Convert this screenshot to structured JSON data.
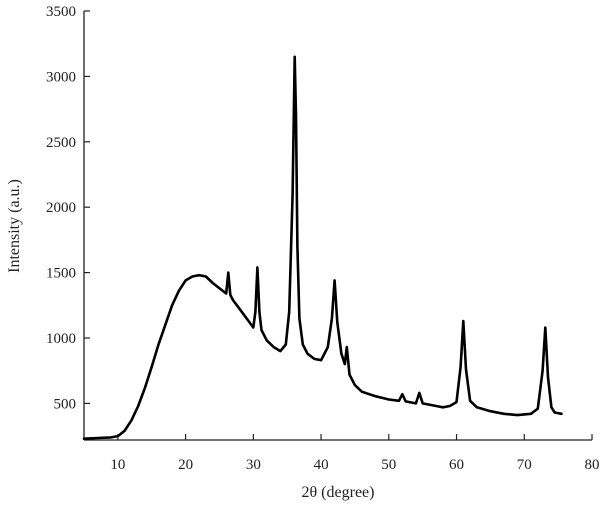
{
  "chart_data": {
    "type": "line",
    "title": "",
    "xlabel": "2θ (degree)",
    "ylabel": "Intensity (a.u.)",
    "xlim": [
      5,
      80
    ],
    "ylim": [
      220,
      3500
    ],
    "x_ticks": [
      10,
      20,
      30,
      40,
      50,
      60,
      70,
      80
    ],
    "y_ticks": [
      500,
      1000,
      1500,
      2000,
      2500,
      3000,
      3500
    ],
    "grid": false,
    "legend": "none",
    "series": [
      {
        "color": "#000000",
        "x": [
          5,
          7,
          9,
          10,
          11,
          12,
          13,
          14,
          15,
          16,
          17,
          18,
          19,
          20,
          21,
          22,
          23,
          24,
          25,
          26,
          26.3,
          26.6,
          27,
          28,
          29,
          30,
          30.3,
          30.6,
          30.9,
          31.2,
          32,
          33,
          34,
          34.8,
          35.3,
          35.8,
          36.1,
          36.3,
          36.5,
          36.8,
          37.3,
          38,
          39,
          40,
          41,
          41.6,
          42,
          42.4,
          43,
          43.5,
          43.8,
          44.2,
          45,
          46,
          48,
          50,
          51.5,
          52,
          52.5,
          54,
          54.5,
          55,
          57,
          58,
          59,
          60,
          60.6,
          61,
          61.4,
          62,
          63,
          65,
          67,
          69,
          71,
          72,
          72.7,
          73.1,
          73.5,
          74,
          74.5,
          75.5
        ],
        "y": [
          230,
          235,
          240,
          250,
          290,
          370,
          480,
          620,
          780,
          950,
          1100,
          1250,
          1360,
          1440,
          1470,
          1480,
          1470,
          1420,
          1380,
          1340,
          1500,
          1330,
          1290,
          1220,
          1150,
          1080,
          1200,
          1540,
          1200,
          1060,
          980,
          930,
          900,
          950,
          1200,
          2100,
          3150,
          2700,
          1700,
          1150,
          950,
          880,
          840,
          830,
          930,
          1150,
          1440,
          1120,
          880,
          800,
          930,
          720,
          640,
          590,
          555,
          530,
          520,
          570,
          515,
          500,
          580,
          500,
          480,
          470,
          480,
          510,
          780,
          1130,
          760,
          520,
          470,
          440,
          420,
          410,
          420,
          460,
          750,
          1080,
          700,
          470,
          430,
          420
        ]
      }
    ]
  }
}
